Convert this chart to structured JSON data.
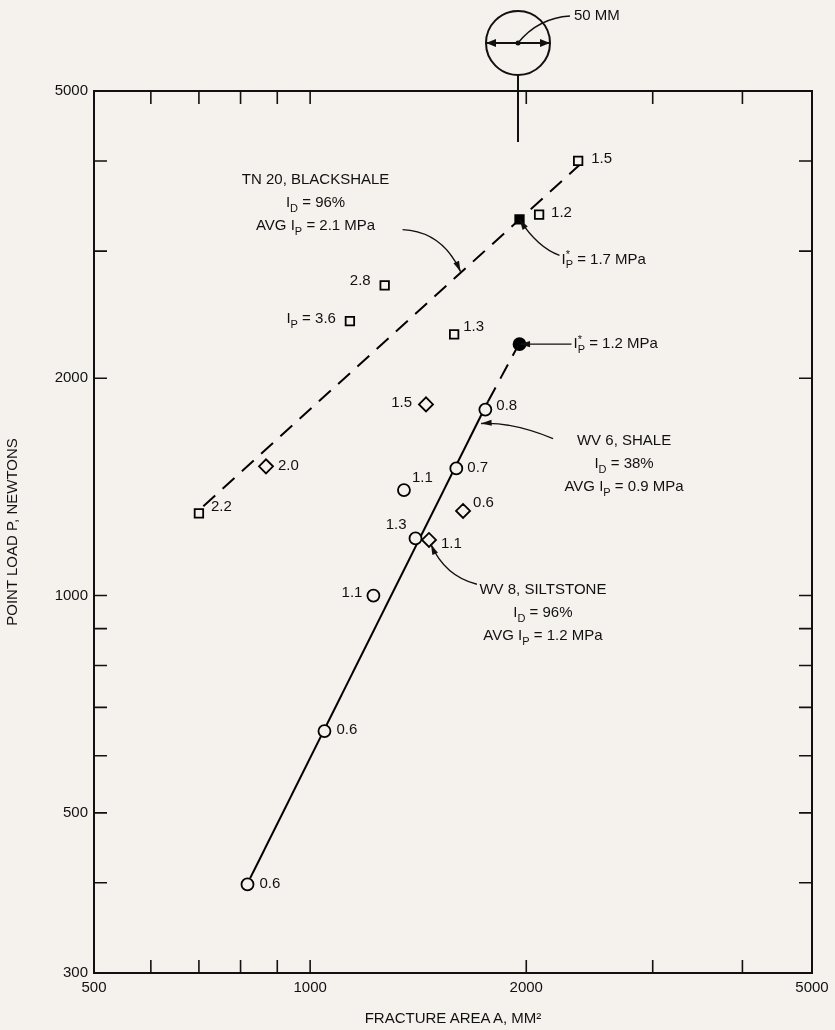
{
  "chart_data": {
    "type": "scatter",
    "xlabel": "FRACTURE AREA A, MM²",
    "ylabel": "POINT LOAD P, NEWTONS",
    "log": "xy",
    "legend": false,
    "xlim": [
      500,
      5000
    ],
    "ylim": [
      300,
      5000
    ],
    "xticks": [
      500,
      {
        "value": 600,
        "label": null
      },
      {
        "value": 700,
        "label": null
      },
      {
        "value": 800,
        "label": null
      },
      {
        "value": 900,
        "label": null
      },
      1000,
      2000,
      {
        "value": 3000,
        "label": null
      },
      {
        "value": 4000,
        "label": null
      },
      5000
    ],
    "yticks": [
      300,
      {
        "value": 400,
        "label": null
      },
      500,
      {
        "value": 600,
        "label": null
      },
      {
        "value": 700,
        "label": null
      },
      {
        "value": 800,
        "label": null
      },
      {
        "value": 900,
        "label": null
      },
      1000,
      2000,
      {
        "value": 3000,
        "label": null
      },
      {
        "value": 4000,
        "label": null
      },
      5000
    ],
    "series": [
      {
        "type": "line",
        "color": "#000000",
        "line_style": "dashed",
        "marker": "none",
        "x": [
          710,
          2380
        ],
        "values": [
          1330,
          3960
        ]
      },
      {
        "type": "line",
        "color": "#000000",
        "line_style": "solid",
        "marker": "none",
        "x": [
          825,
          1769
        ],
        "values": [
          406,
          1857
        ]
      },
      {
        "type": "line",
        "color": "#000000",
        "line_style": "dashed",
        "marker": "none",
        "x": [
          1769,
          1990
        ],
        "values": [
          1857,
          2308
        ]
      },
      {
        "type": "scatter",
        "color": "#000000",
        "marker": "square",
        "x": [
          2362,
          2084,
          1270,
          1136,
          1587,
          700
        ],
        "values": [
          4000,
          3370,
          2690,
          2400,
          2300,
          1300
        ]
      },
      {
        "type": "scatter",
        "color": "#000000",
        "marker": "square",
        "colors": [
          "#000000"
        ],
        "x": [
          1957
        ],
        "values": [
          3320
        ]
      },
      {
        "type": "scatter",
        "color": "#000000",
        "marker": "circle",
        "x": [
          1754,
          1598,
          1351,
          1402,
          1225,
          1047,
          818
        ],
        "values": [
          1810,
          1500,
          1400,
          1200,
          1000,
          649,
          398
        ]
      },
      {
        "type": "scatter",
        "color": "#000000",
        "marker": "circle",
        "colors": [
          "#000000"
        ],
        "x": [
          1957
        ],
        "values": [
          2230
        ]
      },
      {
        "type": "scatter",
        "color": "#000000",
        "marker": "diamond",
        "x": [
          1450,
          868,
          1633,
          1464
        ],
        "values": [
          1840,
          1510,
          1310,
          1194
        ]
      }
    ],
    "annotations": [
      {
        "text": "1.5",
        "x": 2362,
        "y": 4000
      },
      {
        "text": "1.2",
        "x": 2084,
        "y": 3370
      },
      {
        "text": "2.8",
        "x": 1270,
        "y": 2690
      },
      {
        "text": "I$_{P}$ = 3.6",
        "x": 1136,
        "y": 2400
      },
      {
        "text": "1.3",
        "x": 1587,
        "y": 2300
      },
      {
        "text": "1.5",
        "x": 1450,
        "y": 1840
      },
      {
        "text": "0.8",
        "x": 1754,
        "y": 1810
      },
      {
        "text": "2.0",
        "x": 868,
        "y": 1510
      },
      {
        "text": "2.2",
        "x": 700,
        "y": 1300
      },
      {
        "text": "0.7",
        "x": 1598,
        "y": 1500
      },
      {
        "text": "1.1",
        "x": 1351,
        "y": 1400
      },
      {
        "text": "0.6",
        "x": 1633,
        "y": 1310
      },
      {
        "text": "1.3",
        "x": 1402,
        "y": 1200
      },
      {
        "text": "1.1",
        "x": 1464,
        "y": 1194
      },
      {
        "text": "1.1",
        "x": 1225,
        "y": 1000
      },
      {
        "text": "0.6",
        "x": 1047,
        "y": 649
      },
      {
        "text": "0.6",
        "x": 818,
        "y": 398
      },
      {
        "text": "TN 20, BLACKSHALE\nI$_{D}$ = 96%\nAVG I$_{P}$ = 2.1 MPa",
        "x": 1620,
        "y": 2810
      },
      {
        "text": "I$_{P}$$^{*}$ = 1.7 MPa",
        "x": 1957,
        "y": 3320
      },
      {
        "text": "I$_{P}$$^{*}$ = 1.2 MPa",
        "x": 1957,
        "y": 2230
      },
      {
        "text": "WV 6, SHALE\nI$_{D}$ = 38%\nAVG I$_{P}$ = 0.9 MPa",
        "x": 1730,
        "y": 1731
      },
      {
        "text": "WV 8, SILTSTONE\nI$_{D}$ = 96%\nAVG I$_{P}$ = 1.2 MPa",
        "x": 1473,
        "y": 1178
      },
      "50 MM"
    ]
  }
}
